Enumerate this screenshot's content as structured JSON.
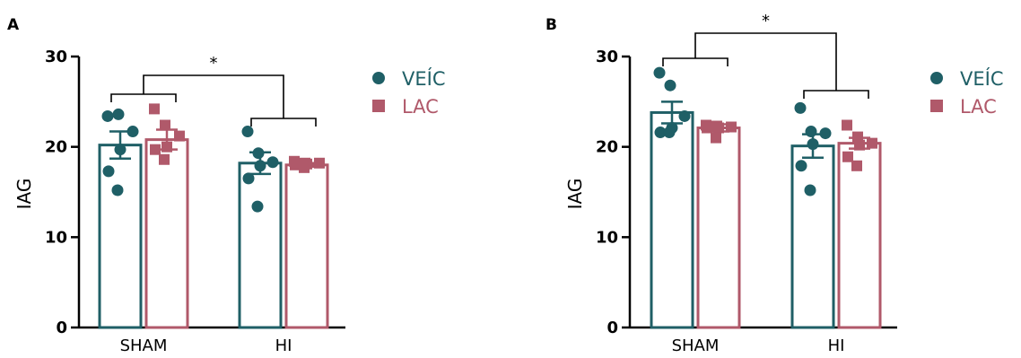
{
  "chart_data": [
    {
      "type": "bar",
      "panel": "A",
      "ylabel": "IAG",
      "ylim": [
        0,
        30
      ],
      "yticks": [
        0,
        10,
        20,
        30
      ],
      "categories": [
        "SHAM",
        "HI"
      ],
      "series": [
        {
          "name": "VEÍC",
          "color": "#1f5f66",
          "marker": "circle",
          "means": [
            20.2,
            18.2
          ],
          "sem": [
            1.5,
            1.2
          ],
          "points": [
            [
              23.4,
              23.6,
              21.7,
              19.7,
              17.3,
              15.2
            ],
            [
              21.7,
              19.3,
              18.3,
              17.9,
              16.5,
              13.4
            ]
          ]
        },
        {
          "name": "LAC",
          "color": "#b0596a",
          "marker": "square",
          "means": [
            20.8,
            18.0
          ],
          "sem": [
            1.1,
            0.2
          ],
          "points": [
            [
              24.2,
              22.4,
              21.2,
              20.0,
              19.7,
              18.6
            ],
            [
              18.4,
              18.2,
              18.2,
              18.1,
              18.0,
              17.7
            ]
          ]
        }
      ],
      "significance": {
        "label": "*",
        "between": "SHAM vs HI"
      }
    },
    {
      "type": "bar",
      "panel": "B",
      "ylabel": "IAG",
      "ylim": [
        0,
        30
      ],
      "yticks": [
        0,
        10,
        20,
        30
      ],
      "categories": [
        "SHAM",
        "HI"
      ],
      "series": [
        {
          "name": "VEÍC",
          "color": "#1f5f66",
          "marker": "circle",
          "means": [
            23.8,
            20.1
          ],
          "sem": [
            1.2,
            1.3
          ],
          "points": [
            [
              28.2,
              26.8,
              23.4,
              22.1,
              21.6,
              21.6
            ],
            [
              24.3,
              21.7,
              21.5,
              20.3,
              17.9,
              15.2
            ]
          ]
        },
        {
          "name": "LAC",
          "color": "#b0596a",
          "marker": "square",
          "means": [
            22.1,
            20.4
          ],
          "sem": [
            0.4,
            0.6
          ],
          "points": [
            [
              22.4,
              22.3,
              22.2,
              22.1,
              22.1,
              21.0
            ],
            [
              22.4,
              21.1,
              20.4,
              20.2,
              18.9,
              17.9
            ]
          ]
        }
      ],
      "significance": {
        "label": "*",
        "between": "SHAM vs HI"
      }
    }
  ]
}
